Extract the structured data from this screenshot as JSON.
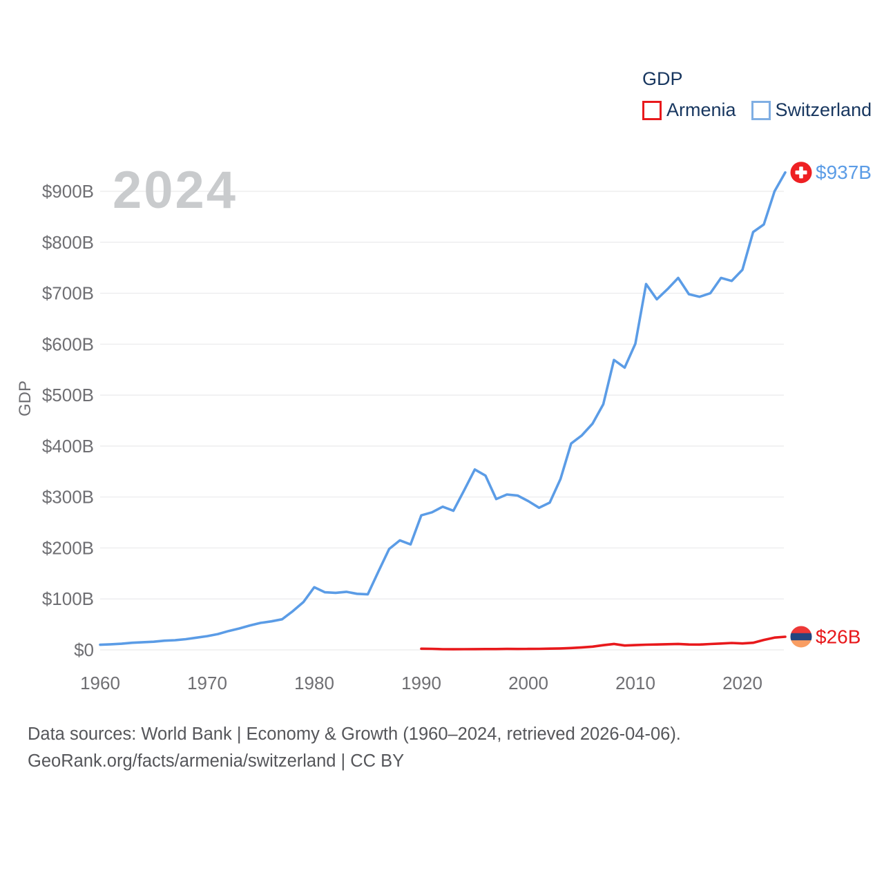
{
  "page": {
    "background": "#FFFFFF"
  },
  "legend": {
    "title": "GDP",
    "items": [
      {
        "label": "Armenia",
        "swatch_color": "#E8191C"
      },
      {
        "label": "Switzerland",
        "swatch_color": "#7FAEE3"
      }
    ]
  },
  "footer": {
    "line1": "Data sources: World Bank | Economy & Growth (1960–2024, retrieved 2026-04-06).",
    "line2": "GeoRank.org/facts/armenia/switzerland | CC BY"
  },
  "chart_data": {
    "type": "line",
    "title": "GDP",
    "watermark": "2024",
    "ylabel": "GDP",
    "xlabel": "",
    "ylim": [
      0,
      970
    ],
    "xlim": [
      1959.5,
      2025
    ],
    "grid": "horizontal-only",
    "legend_position": "top-right",
    "y_ticks": [
      {
        "label": "$0",
        "value": 0
      },
      {
        "label": "$100B",
        "value": 100
      },
      {
        "label": "$200B",
        "value": 200
      },
      {
        "label": "$300B",
        "value": 300
      },
      {
        "label": "$400B",
        "value": 400
      },
      {
        "label": "$500B",
        "value": 500
      },
      {
        "label": "$600B",
        "value": 600
      },
      {
        "label": "$700B",
        "value": 700
      },
      {
        "label": "$800B",
        "value": 800
      },
      {
        "label": "$900B",
        "value": 900
      }
    ],
    "x_ticks": [
      {
        "label": "1960",
        "value": 1960
      },
      {
        "label": "1970",
        "value": 1970
      },
      {
        "label": "1980",
        "value": 1980
      },
      {
        "label": "1990",
        "value": 1990
      },
      {
        "label": "2000",
        "value": 2000
      },
      {
        "label": "2010",
        "value": 2010
      },
      {
        "label": "2020",
        "value": 2020
      }
    ],
    "series": [
      {
        "name": "Switzerland",
        "color": "#5B9CE6",
        "start_year": 1960,
        "end_year": 2024,
        "end_label": "$937B",
        "end_label_color": "#5B9CE6",
        "flag": "switzerland",
        "flag_colors": {
          "bg": "#EE2023",
          "cross": "#FFFFFF"
        },
        "unit": "billion USD",
        "values": [
          10,
          11,
          12,
          14,
          15,
          16,
          18,
          19,
          21,
          24,
          27,
          31,
          37,
          42,
          48,
          53,
          56,
          60,
          76,
          94,
          123,
          113,
          112,
          114,
          110,
          109,
          154,
          198,
          215,
          207,
          264,
          270,
          281,
          273,
          313,
          354,
          342,
          296,
          305,
          303,
          292,
          279,
          289,
          335,
          405,
          421,
          444,
          482,
          569,
          554,
          601,
          718,
          688,
          708,
          730,
          698,
          693,
          700,
          730,
          724,
          746,
          820,
          835,
          900,
          937
        ]
      },
      {
        "name": "Armenia",
        "color": "#E8191C",
        "start_year": 1990,
        "end_year": 2024,
        "end_label": "$26B",
        "end_label_color": "#E8191C",
        "flag": "armenia",
        "flag_colors": {
          "stripes": [
            "#ED3837",
            "#24457F",
            "#F99E63"
          ]
        },
        "unit": "billion USD",
        "values": [
          2.3,
          2.1,
          1.3,
          1.2,
          1.3,
          1.5,
          1.6,
          1.6,
          1.9,
          1.8,
          1.9,
          2.1,
          2.4,
          2.8,
          3.6,
          4.9,
          6.4,
          9.2,
          11.7,
          8.6,
          9.3,
          10.1,
          10.6,
          11.1,
          11.6,
          10.6,
          10.5,
          11.5,
          12.5,
          13.6,
          12.6,
          13.9,
          19.5,
          24.1,
          25.8
        ]
      }
    ]
  }
}
